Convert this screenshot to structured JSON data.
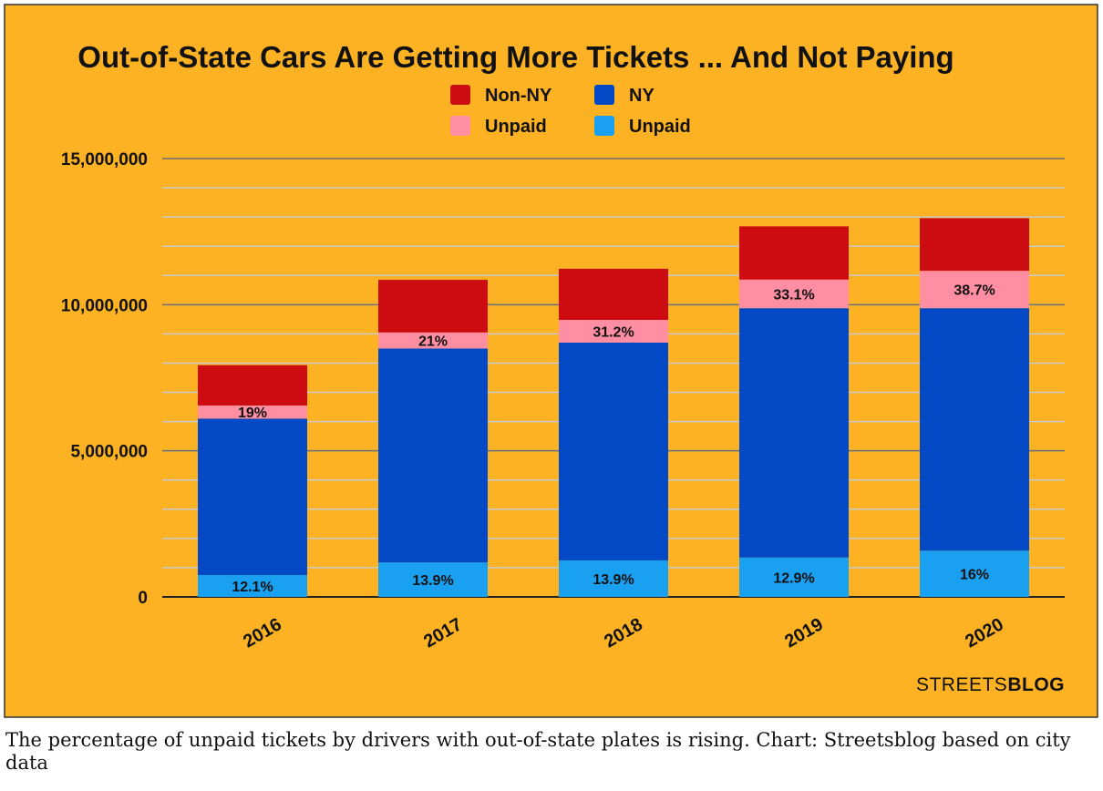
{
  "chart_data": {
    "type": "bar",
    "stacked": true,
    "title": "Out-of-State Cars Are Getting More Tickets ... And Not Paying",
    "categories": [
      "2016",
      "2017",
      "2018",
      "2019",
      "2020"
    ],
    "series": [
      {
        "name": "Unpaid",
        "group": "NY",
        "color": "#1aa0f0",
        "values": [
          750000,
          1180000,
          1250000,
          1350000,
          1580000
        ]
      },
      {
        "name": "NY",
        "color": "#0348c4",
        "values": [
          5350000,
          7320000,
          7450000,
          8530000,
          8300000
        ]
      },
      {
        "name": "Unpaid",
        "group": "Non-NY",
        "color": "#ff8ea3",
        "values": [
          450000,
          550000,
          780000,
          980000,
          1280000
        ]
      },
      {
        "name": "Non-NY",
        "color": "#cc0c10",
        "values": [
          1380000,
          1800000,
          1750000,
          1820000,
          1800000
        ]
      }
    ],
    "data_labels": {
      "unpaid_ny": [
        "12.1%",
        "13.9%",
        "13.9%",
        "12.9%",
        "16%"
      ],
      "unpaid_non_ny": [
        "19%",
        "21%",
        "31.2%",
        "33.1%",
        "38.7%"
      ]
    },
    "ylim": [
      0,
      15000000
    ],
    "yticks": [
      0,
      5000000,
      10000000,
      15000000
    ],
    "ytick_labels": [
      "0",
      "5,000,000",
      "10,000,000",
      "15,000,000"
    ],
    "minor_grid_step": 1000000,
    "grid": true,
    "legend": {
      "placement": "top-center",
      "entries": [
        {
          "label": "Non-NY",
          "color": "#cc0c10"
        },
        {
          "label": "NY",
          "color": "#0348c4"
        },
        {
          "label": "Unpaid",
          "color": "#ff8ea3"
        },
        {
          "label": "Unpaid",
          "color": "#1aa0f0"
        }
      ]
    },
    "background_color": "#fdb223",
    "xlabel": "",
    "ylabel": ""
  },
  "brand": {
    "light": "STREETS",
    "bold": "BLOG"
  },
  "caption": "The percentage of unpaid tickets by drivers with out-of-state plates is rising. Chart: Streetsblog based on city data"
}
